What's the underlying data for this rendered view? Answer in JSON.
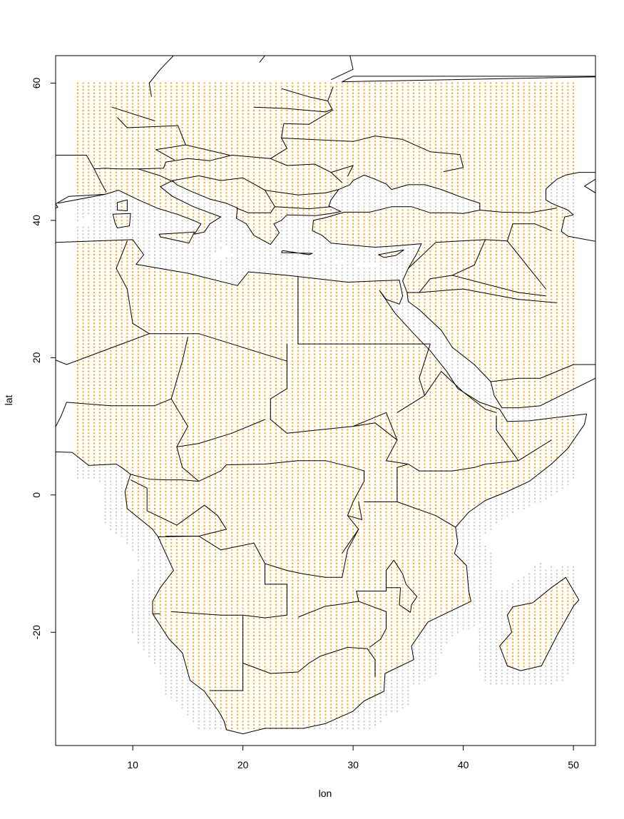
{
  "chart_data": {
    "type": "scatter",
    "title": "",
    "xlabel": "lon",
    "ylabel": "lat",
    "xlim": [
      3,
      52
    ],
    "ylim": [
      -36.5,
      64
    ],
    "x_ticks": [
      10,
      20,
      30,
      40,
      50
    ],
    "y_ticks": [
      -20,
      0,
      20,
      40,
      60
    ],
    "x_tick_labels": [
      "10",
      "20",
      "30",
      "40",
      "50"
    ],
    "y_tick_labels": [
      "-20",
      "0",
      "20",
      "40",
      "60"
    ],
    "grid": false,
    "legend": "none",
    "series": [
      {
        "role": "all grid points",
        "color": "#c8c8c8",
        "marker": "dot",
        "spacing_deg": 0.5,
        "extent": {
          "lon": [
            5,
            50
          ],
          "lat": [
            -34,
            60
          ]
        }
      },
      {
        "role": "land grid points",
        "color": "#ffa500",
        "marker": "dot",
        "spacing_deg": 0.5,
        "extent": {
          "lon": [
            5,
            50
          ],
          "lat": [
            -34,
            60
          ]
        }
      }
    ],
    "overlay": {
      "type": "country-borders",
      "color": "#000000"
    }
  }
}
